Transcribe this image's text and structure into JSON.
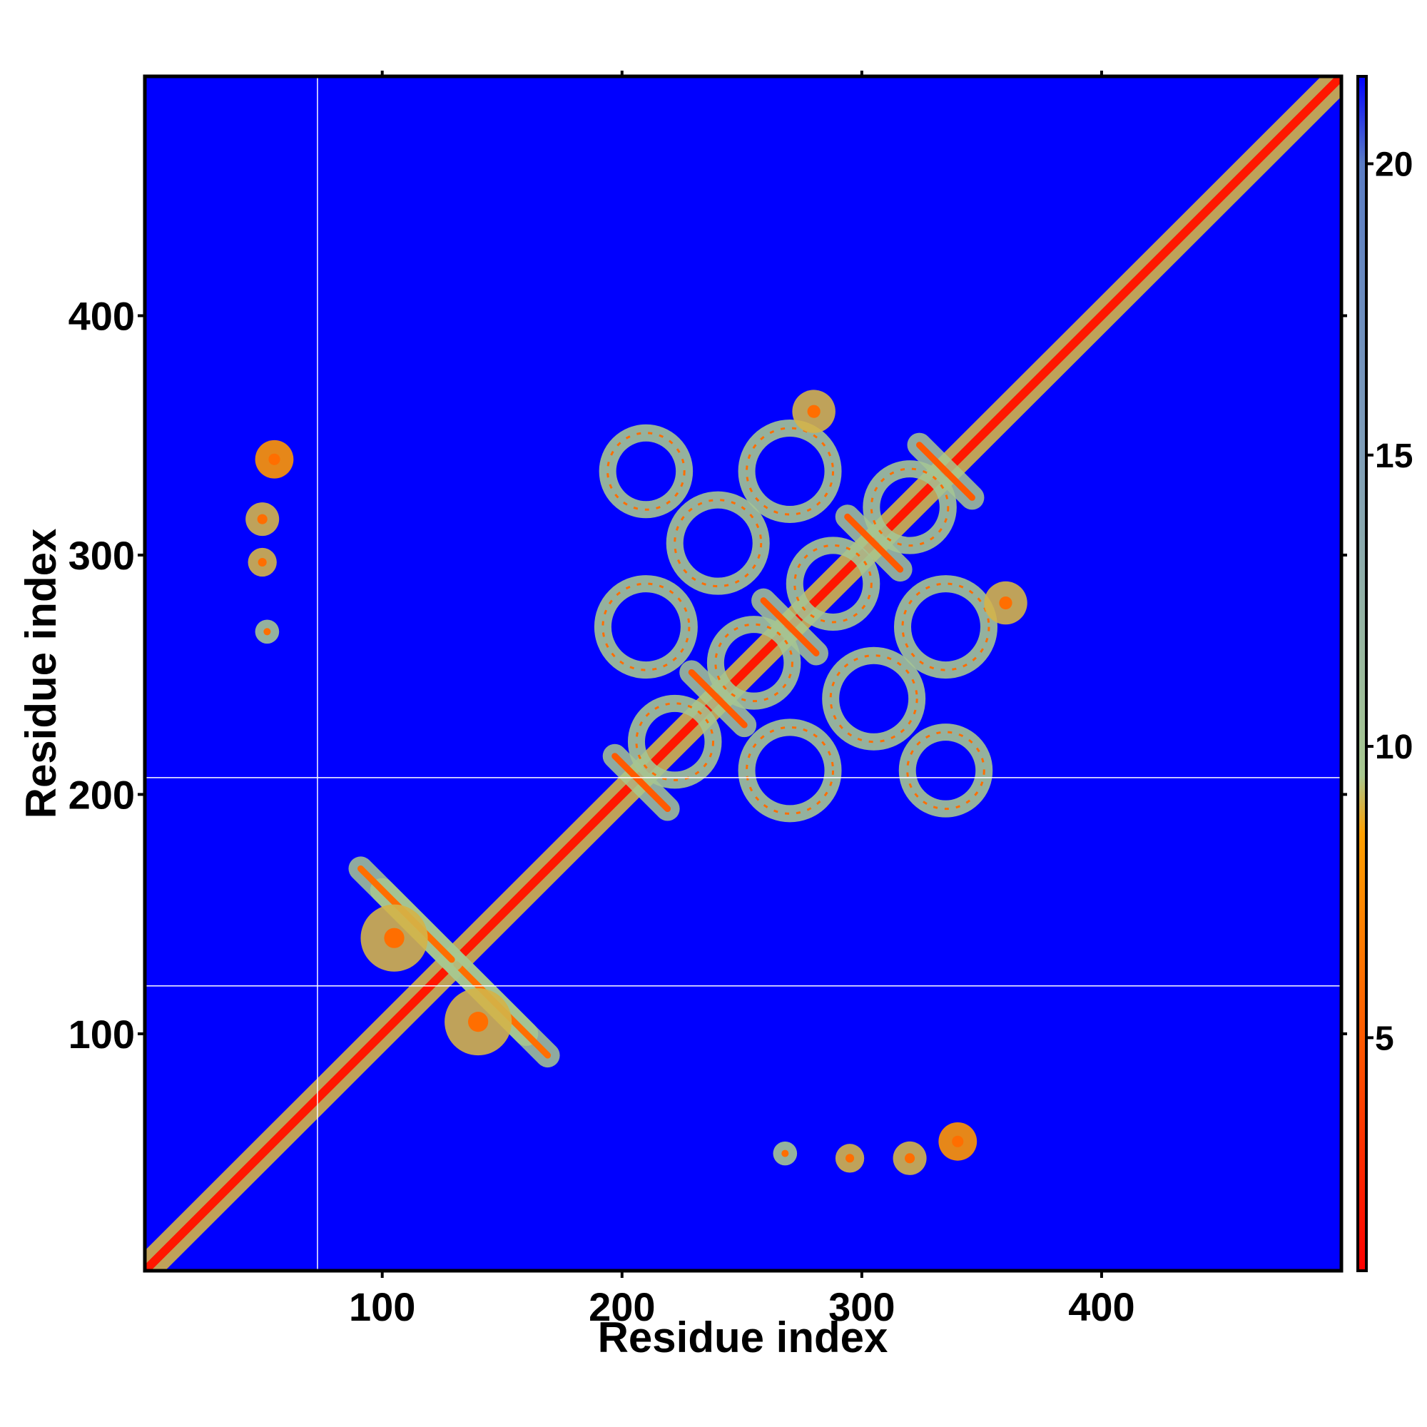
{
  "chart_data": {
    "type": "heatmap",
    "title": "",
    "xlabel": "Residue index",
    "ylabel": "Residue index",
    "xlim": [
      1,
      500
    ],
    "ylim": [
      1,
      500
    ],
    "x_ticks": [
      100,
      200,
      300,
      400
    ],
    "y_ticks": [
      100,
      200,
      300,
      400
    ],
    "x_tick_labels": [
      "100",
      "200",
      "300",
      "400"
    ],
    "y_tick_labels": [
      "100",
      "200",
      "300",
      "400"
    ],
    "grid": false,
    "background_value": 21.5,
    "colorbar": {
      "position": "right",
      "range": [
        1,
        21.5
      ],
      "ticks": [
        5,
        10,
        15,
        20
      ],
      "tick_labels": [
        "5",
        "10",
        "15",
        "20"
      ],
      "stops": [
        {
          "value": 1,
          "color": "#ff0000"
        },
        {
          "value": 5,
          "color": "#ff5a00"
        },
        {
          "value": 8.5,
          "color": "#ffa000"
        },
        {
          "value": 9.5,
          "color": "#a8c890"
        },
        {
          "value": 15,
          "color": "#7f9eb8"
        },
        {
          "value": 20,
          "color": "#5a7cc4"
        },
        {
          "value": 21.5,
          "color": "#0000ff"
        }
      ]
    },
    "gap_lines": {
      "x": [
        73
      ],
      "y": [
        120,
        207
      ],
      "color": "#ffffff"
    },
    "diagonal": {
      "from": 1,
      "to": 500,
      "core_value": 2,
      "halo_value": 9
    },
    "contact_features": [
      {
        "kind": "anti",
        "center": [
          130,
          130
        ],
        "length": 60,
        "value": 7
      },
      {
        "kind": "anti",
        "center": [
          150,
          110
        ],
        "length": 38,
        "value": 6
      },
      {
        "kind": "anti",
        "center": [
          110,
          150
        ],
        "length": 38,
        "value": 6
      },
      {
        "kind": "blob",
        "center": [
          105,
          140
        ],
        "radius": 14,
        "value": 9
      },
      {
        "kind": "blob",
        "center": [
          140,
          105
        ],
        "radius": 14,
        "value": 9
      },
      {
        "kind": "anti",
        "center": [
          208,
          205
        ],
        "length": 22,
        "value": 5
      },
      {
        "kind": "anti",
        "center": [
          240,
          240
        ],
        "length": 22,
        "value": 5
      },
      {
        "kind": "anti",
        "center": [
          270,
          270
        ],
        "length": 22,
        "value": 5
      },
      {
        "kind": "anti",
        "center": [
          305,
          305
        ],
        "length": 22,
        "value": 5
      },
      {
        "kind": "anti",
        "center": [
          335,
          335
        ],
        "length": 22,
        "value": 5
      },
      {
        "kind": "ring",
        "center": [
          222,
          222
        ],
        "radius": 16,
        "value": 10
      },
      {
        "kind": "ring",
        "center": [
          255,
          255
        ],
        "radius": 16,
        "value": 10
      },
      {
        "kind": "ring",
        "center": [
          288,
          288
        ],
        "radius": 16,
        "value": 10
      },
      {
        "kind": "ring",
        "center": [
          320,
          320
        ],
        "radius": 16,
        "value": 10
      },
      {
        "kind": "ring",
        "center": [
          240,
          305
        ],
        "radius": 18,
        "value": 10
      },
      {
        "kind": "ring",
        "center": [
          305,
          240
        ],
        "radius": 18,
        "value": 10
      },
      {
        "kind": "ring",
        "center": [
          210,
          270
        ],
        "radius": 18,
        "value": 10
      },
      {
        "kind": "ring",
        "center": [
          270,
          210
        ],
        "radius": 18,
        "value": 10
      },
      {
        "kind": "ring",
        "center": [
          270,
          335
        ],
        "radius": 18,
        "value": 10
      },
      {
        "kind": "ring",
        "center": [
          335,
          270
        ],
        "radius": 18,
        "value": 10
      },
      {
        "kind": "ring",
        "center": [
          210,
          335
        ],
        "radius": 16,
        "value": 10
      },
      {
        "kind": "ring",
        "center": [
          335,
          210
        ],
        "radius": 16,
        "value": 10
      },
      {
        "kind": "blob",
        "center": [
          55,
          340
        ],
        "radius": 8,
        "value": 8
      },
      {
        "kind": "blob",
        "center": [
          50,
          315
        ],
        "radius": 7,
        "value": 9
      },
      {
        "kind": "blob",
        "center": [
          50,
          297
        ],
        "radius": 6,
        "value": 9
      },
      {
        "kind": "blob",
        "center": [
          52,
          268
        ],
        "radius": 5,
        "value": 10
      },
      {
        "kind": "blob",
        "center": [
          340,
          55
        ],
        "radius": 8,
        "value": 8
      },
      {
        "kind": "blob",
        "center": [
          320,
          48
        ],
        "radius": 7,
        "value": 9
      },
      {
        "kind": "blob",
        "center": [
          295,
          48
        ],
        "radius": 6,
        "value": 9
      },
      {
        "kind": "blob",
        "center": [
          268,
          50
        ],
        "radius": 5,
        "value": 10
      },
      {
        "kind": "blob",
        "center": [
          360,
          280
        ],
        "radius": 9,
        "value": 9
      },
      {
        "kind": "blob",
        "center": [
          280,
          360
        ],
        "radius": 9,
        "value": 9
      }
    ]
  }
}
